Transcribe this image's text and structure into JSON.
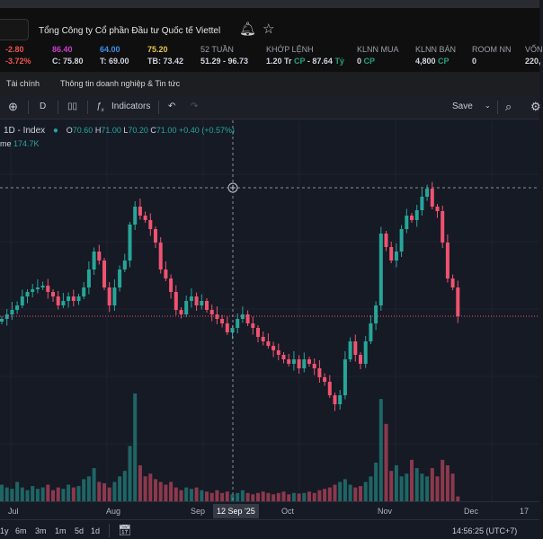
{
  "header": {
    "company": "Tổng Công ty Cổ phần Đầu tư Quốc tế Viettel",
    "change": "-2.80",
    "change_pct": "-3.72%",
    "ceiling": "86.40",
    "ref": "C: 75.80",
    "floor": "64.00",
    "low": "T: 69.00",
    "avg_top": "75.20",
    "avg": "TB: 73.42",
    "week52_label": "52 TUẦN",
    "week52": "51.29 - 96.73",
    "matched_label": "KHỚP LỆNH",
    "matched_vol": "1.20 Tr",
    "matched_unit": "CP",
    "matched_sep": " - ",
    "matched_val": "87.64",
    "matched_val_unit": "Tỷ",
    "foreign_buy_label": "KLNN MUA",
    "foreign_buy": "0",
    "foreign_buy_unit": "CP",
    "foreign_sell_label": "KLNN BÁN",
    "foreign_sell": "4,800",
    "foreign_sell_unit": "CP",
    "room_label": "ROOM NN",
    "room": "0",
    "cap_label": "VỐN",
    "cap": "220,"
  },
  "tabs": [
    "Tài chính",
    "Thông tin doanh nghiệp & Tin tức"
  ],
  "toolbar": {
    "interval": "D",
    "indicators": "Indicators",
    "save": "Save"
  },
  "legend": {
    "symbol": "1D - Index",
    "o_label": "O",
    "o": "70.60",
    "h_label": "H",
    "h": "71.00",
    "l_label": "L",
    "l": "70.20",
    "c_label": "C",
    "c": "71.00",
    "change": "+0.40 (+0.57%)",
    "volume_label": "me",
    "volume": "174.7K"
  },
  "colors": {
    "up": "#26a69a",
    "down": "#ef5370",
    "bg": "#161a25"
  },
  "xaxis": {
    "labels": [
      "Jul",
      "Aug",
      "Sep",
      "12 Sep '25",
      "Oct",
      "Nov",
      "Dec",
      "17"
    ]
  },
  "bottom": {
    "ranges": [
      "1y",
      "6m",
      "3m",
      "1m",
      "5d",
      "1d"
    ],
    "time": "14:56:25 (UTC+7)"
  },
  "chart_data": {
    "type": "candlestick",
    "close": [
      70.7,
      71.2,
      71.7,
      72.2,
      73.2,
      73.7,
      74.0,
      74.2,
      74.4,
      73.7,
      73.2,
      72.2,
      72.7,
      73.2,
      72.7,
      73.2,
      74.2,
      76.2,
      78.2,
      77.2,
      74.2,
      72.2,
      74.2,
      76.2,
      77.2,
      81.2,
      83.2,
      82.2,
      81.7,
      80.7,
      79.2,
      76.2,
      75.2,
      73.7,
      71.7,
      71.2,
      72.7,
      73.2,
      72.2,
      72.7,
      71.7,
      71.2,
      70.7,
      70.2,
      69.2,
      69.7,
      70.7,
      71.2,
      70.2,
      69.7,
      68.7,
      68.2,
      67.7,
      67.2,
      66.7,
      66.2,
      65.7,
      66.2,
      65.2,
      66.2,
      65.7,
      65.2,
      64.2,
      63.7,
      62.2,
      61.2,
      62.2,
      66.2,
      68.2,
      66.7,
      65.7,
      68.2,
      70.2,
      72.2,
      80.2,
      78.7,
      77.2,
      78.2,
      80.7,
      82.2,
      81.7,
      82.8,
      84.3,
      85.2,
      83.2,
      82.7,
      79.2,
      75.2,
      74.2,
      71.0
    ],
    "volume_k": [
      600,
      500,
      450,
      700,
      500,
      400,
      550,
      450,
      500,
      600,
      400,
      500,
      450,
      600,
      500,
      550,
      800,
      900,
      1200,
      700,
      650,
      500,
      700,
      900,
      1100,
      2000,
      3900,
      1300,
      900,
      1000,
      800,
      700,
      600,
      700,
      500,
      400,
      500,
      450,
      500,
      400,
      350,
      300,
      400,
      300,
      350,
      250,
      300,
      400,
      300,
      250,
      300,
      350,
      300,
      250,
      300,
      350,
      250,
      300,
      280,
      300,
      350,
      300,
      400,
      450,
      500,
      600,
      700,
      800,
      600,
      500,
      550,
      700,
      900,
      1400,
      3700,
      2800,
      1100,
      1300,
      900,
      1000,
      1500,
      1200,
      1000,
      900,
      1200,
      900,
      1500,
      1300,
      1000,
      174.7
    ]
  }
}
